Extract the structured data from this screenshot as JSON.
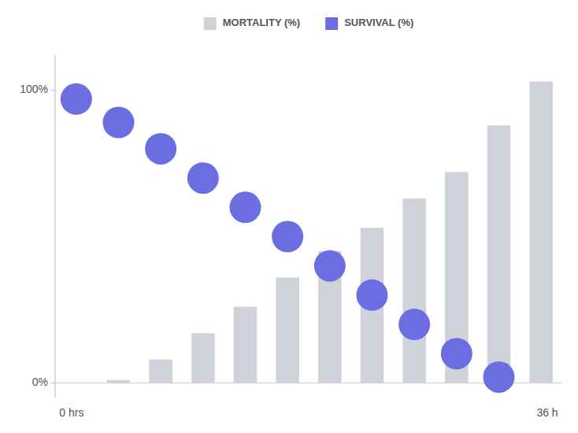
{
  "chart_data": {
    "type": "bar",
    "categories": [
      "0 hrs",
      null,
      null,
      null,
      null,
      null,
      null,
      null,
      null,
      null,
      null,
      "36 h"
    ],
    "series": [
      {
        "name": "MORTALITY (%)",
        "type": "bar",
        "color": "#d0d2da",
        "values": [
          null,
          1,
          8,
          17,
          26,
          36,
          45,
          53,
          63,
          72,
          88,
          103
        ]
      },
      {
        "name": "SURVIVAL (%)",
        "type": "scatter",
        "marker": "circle",
        "color": "#6b6ee0",
        "values": [
          97,
          89,
          80,
          70,
          60,
          50,
          40,
          30,
          20,
          10,
          2,
          null
        ]
      }
    ],
    "ylim": [
      -5,
      112
    ],
    "yticks": [
      {
        "value": 0,
        "label": "0%"
      },
      {
        "value": 100,
        "label": "100%"
      }
    ],
    "grid": false,
    "legend": "top"
  }
}
